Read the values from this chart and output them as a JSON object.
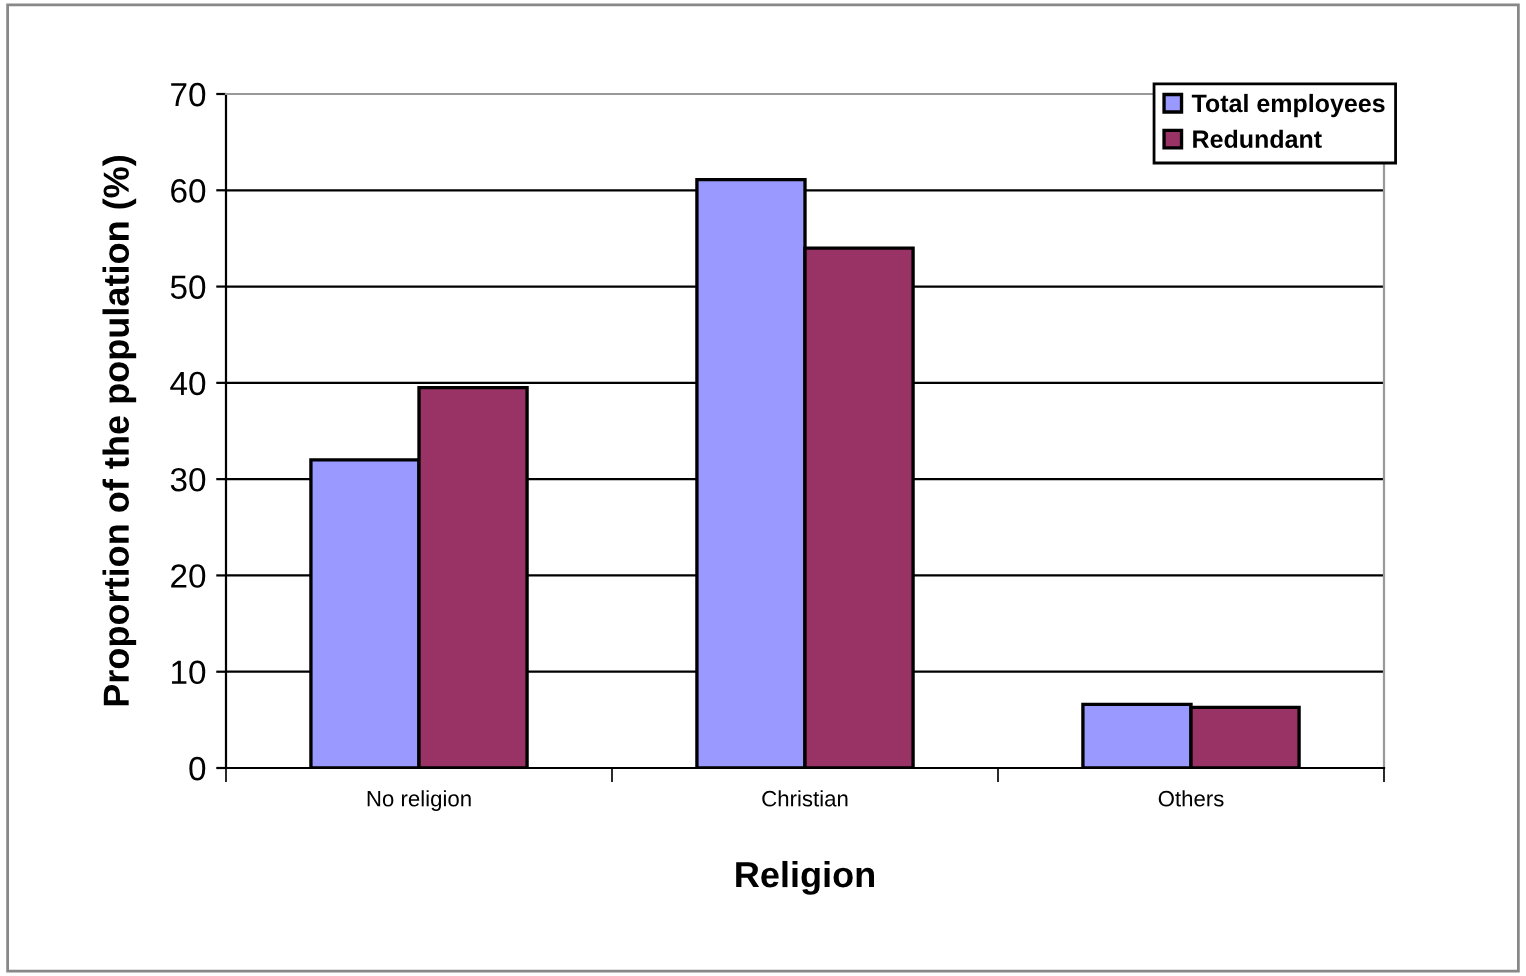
{
  "chart_data": {
    "type": "bar",
    "xlabel": "Religion",
    "ylabel": "Proportion of the population (%)",
    "categories": [
      "No religion",
      "Christian",
      "Others"
    ],
    "series": [
      {
        "name": "Total employees",
        "color": "#9999ff",
        "values": [
          32.0,
          61.1,
          6.6
        ]
      },
      {
        "name": "Redundant",
        "color": "#993366",
        "values": [
          39.5,
          54.0,
          6.3
        ]
      }
    ],
    "ylim": [
      0,
      70
    ],
    "yticks": [
      0,
      10,
      20,
      30,
      40,
      50,
      60,
      70
    ],
    "grid": "y",
    "legend": "top right"
  }
}
